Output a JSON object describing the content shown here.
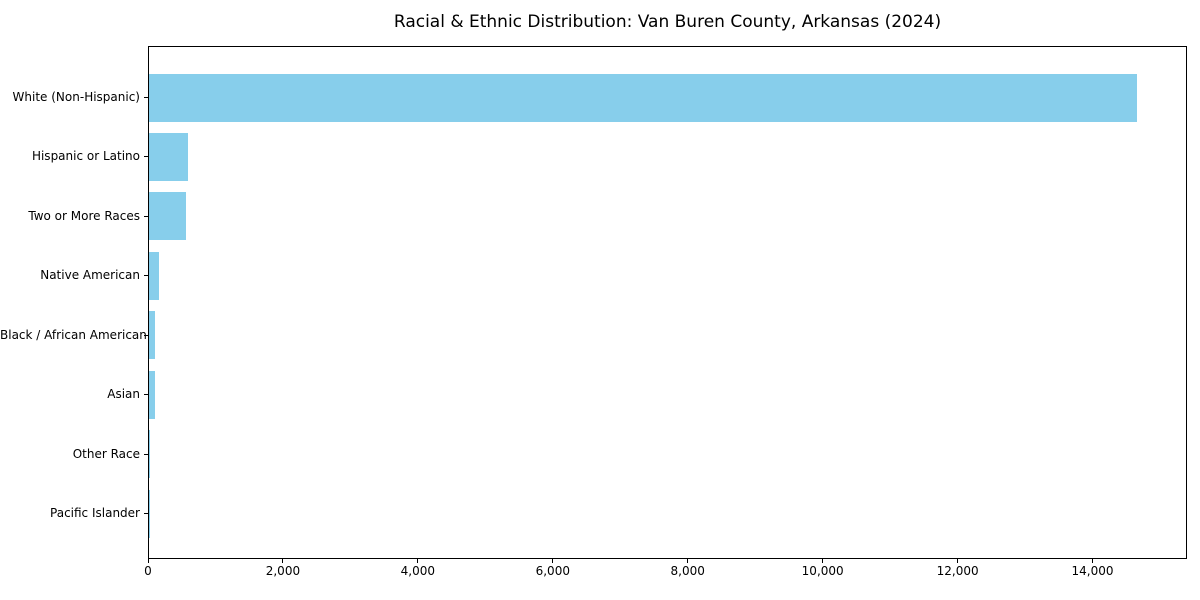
{
  "chart_data": {
    "type": "bar",
    "orientation": "horizontal",
    "title": "Racial & Ethnic Distribution: Van Buren County, Arkansas (2024)",
    "categories": [
      "White (Non-Hispanic)",
      "Hispanic or Latino",
      "Two or More Races",
      "Native American",
      "Black / African American",
      "Asian",
      "Other Race",
      "Pacific Islander"
    ],
    "values": [
      14640,
      575,
      555,
      150,
      90,
      85,
      15,
      5
    ],
    "xlabel": "",
    "ylabel": "",
    "xlim": [
      0,
      15400
    ],
    "xticks": [
      0,
      2000,
      4000,
      6000,
      8000,
      10000,
      12000,
      14000
    ],
    "xtick_labels": [
      "0",
      "2,000",
      "4,000",
      "6,000",
      "8,000",
      "10,000",
      "12,000",
      "14,000"
    ],
    "bar_color": "#87CEEB",
    "axis_color": "#000000",
    "text_color": "#000000",
    "background_color": "#ffffff",
    "grid": false,
    "legend": null
  }
}
